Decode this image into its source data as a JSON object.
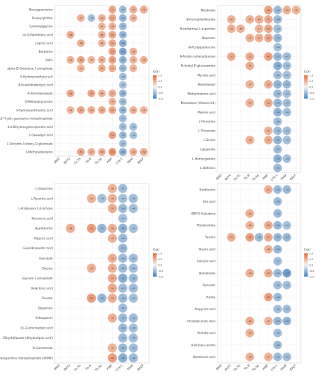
{
  "colors": {
    "negative": "#3f7fbd",
    "positive": "#e8672f",
    "neutral": "#f4f4f4",
    "frame": "#cccccc"
  },
  "chart_data": [
    {
      "type": "heatmap",
      "legend_title": "Corr",
      "legend_ticks": [
        "1.0",
        "0.5",
        "0.0",
        "-0.5",
        "-1.0"
      ],
      "legend_range": [
        -1,
        1
      ],
      "legend_placement": "right",
      "x_categories": [
        "BMD",
        "BVTV",
        "Tb.Th",
        "Tb.N",
        "Tb.Sp",
        "PINP",
        "CTX-1",
        "TRAP",
        "BALP"
      ],
      "y_categories": [
        "Deoxyguanosine",
        "Deoxycytidine",
        "Cysteinylglycine",
        "cis-9-Palmitoleic acid",
        "Caproic acid",
        "Berberine",
        "Apiin",
        "alpha-D-Galactose 1-phosphate",
        "5-Hydroxymethyluracil",
        "4-Guanidinobutyric acid",
        "4-Aminobenzoate",
        "3-Methoxytyramine",
        "3-Hydroxyanthranilic acid",
        "3',5'-Cyclic guanosine monophosphate",
        "3,4-Dihydroxyphenylacetic acid",
        "2-Oxoadipic acid",
        "2-Dehydro-3-deoxy-D-gluconate",
        "1-Methyladenosine"
      ],
      "cells": [
        [
          0,
          5,
          0.54
        ],
        [
          0,
          6,
          -0.49
        ],
        [
          0,
          7,
          0.5
        ],
        [
          0,
          8,
          0.51
        ],
        [
          1,
          2,
          0.47
        ],
        [
          1,
          3,
          -0.44
        ],
        [
          1,
          4,
          0.48
        ],
        [
          1,
          5,
          0.55
        ],
        [
          1,
          6,
          -0.54
        ],
        [
          1,
          7,
          0.46
        ],
        [
          2,
          4,
          0.45
        ],
        [
          2,
          5,
          0.49
        ],
        [
          2,
          6,
          -0.51
        ],
        [
          3,
          1,
          0.52
        ],
        [
          3,
          4,
          0.48
        ],
        [
          3,
          5,
          0.55
        ],
        [
          3,
          6,
          -0.54
        ],
        [
          4,
          2,
          0.48
        ],
        [
          4,
          4,
          0.46
        ],
        [
          4,
          5,
          0.53
        ],
        [
          4,
          6,
          -0.59
        ],
        [
          5,
          5,
          0.59
        ],
        [
          5,
          6,
          -0.66
        ],
        [
          5,
          7,
          0.49
        ],
        [
          6,
          1,
          0.46
        ],
        [
          6,
          2,
          0.56
        ],
        [
          6,
          3,
          0.44
        ],
        [
          6,
          4,
          0.48
        ],
        [
          6,
          5,
          0.59
        ],
        [
          6,
          6,
          -0.55
        ],
        [
          6,
          7,
          0.46
        ],
        [
          6,
          8,
          0.49
        ],
        [
          7,
          2,
          0.46
        ],
        [
          7,
          4,
          0.5
        ],
        [
          7,
          5,
          0.52
        ],
        [
          7,
          6,
          -0.51
        ],
        [
          7,
          7,
          0.45
        ],
        [
          8,
          6,
          -0.46
        ],
        [
          9,
          6,
          -0.43
        ],
        [
          10,
          1,
          0.55
        ],
        [
          10,
          3,
          0.56
        ],
        [
          10,
          4,
          0.46
        ],
        [
          10,
          5,
          0.51
        ],
        [
          10,
          6,
          -0.54
        ],
        [
          11,
          5,
          0.47
        ],
        [
          11,
          6,
          -0.47
        ],
        [
          12,
          1,
          0.44
        ],
        [
          12,
          2,
          0.57
        ],
        [
          12,
          3,
          0.51
        ],
        [
          12,
          4,
          0.53
        ],
        [
          12,
          5,
          0.54
        ],
        [
          12,
          6,
          -0.54
        ],
        [
          12,
          7,
          0.49
        ],
        [
          12,
          8,
          0.45
        ],
        [
          13,
          6,
          -0.47
        ],
        [
          14,
          6,
          -0.47
        ],
        [
          14,
          7,
          -0.46
        ],
        [
          15,
          5,
          0.58
        ],
        [
          15,
          6,
          -0.5
        ],
        [
          15,
          7,
          -0.44
        ],
        [
          16,
          6,
          -0.47
        ],
        [
          17,
          2,
          0.55
        ],
        [
          17,
          3,
          0.47
        ],
        [
          17,
          4,
          0.5
        ],
        [
          17,
          5,
          0.71
        ],
        [
          17,
          6,
          -0.58
        ],
        [
          17,
          7,
          0.49
        ],
        [
          17,
          8,
          0.52
        ]
      ]
    },
    {
      "type": "heatmap",
      "legend_title": "Corr",
      "legend_ticks": [
        "1.0",
        "0.5",
        "0.0",
        "-0.5",
        "-1.0"
      ],
      "legend_range": [
        -1,
        1
      ],
      "legend_placement": "right",
      "x_categories": [
        "BMD",
        "BVTV",
        "Tb.Th",
        "Tb.N",
        "Tb.Sp",
        "PINP",
        "CTX-1",
        "TRAP",
        "BALP"
      ],
      "y_categories": [
        "Nicotinate",
        "N-Formylmethionine",
        "N-carbamoyl-L-aspartate",
        "Naproxen",
        "N-Acetylputrescine",
        "N-Acetyl-L-phenylalanine",
        "N-Acetyl-D-glucosamine",
        "Myristic acid",
        "Montelukast",
        "Methylmalonic acid",
        "Menadione (Vitamin K3)",
        "Malonic acid",
        "L-Threonine",
        "L-Threonate",
        "L-Serine",
        "Lipoamide",
        "L-Homocysteine",
        "L-Histidine"
      ],
      "cells": [
        [
          0,
          5,
          0.58
        ],
        [
          0,
          6,
          -0.5
        ],
        [
          0,
          7,
          0.49
        ],
        [
          0,
          8,
          0.46
        ],
        [
          1,
          1,
          0.47
        ],
        [
          1,
          3,
          0.47
        ],
        [
          1,
          4,
          0.48
        ],
        [
          1,
          5,
          0.53
        ],
        [
          1,
          6,
          -0.49
        ],
        [
          2,
          1,
          0.49
        ],
        [
          2,
          2,
          0.48
        ],
        [
          2,
          4,
          0.47
        ],
        [
          2,
          5,
          0.55
        ],
        [
          2,
          6,
          -0.44
        ],
        [
          3,
          3,
          0.47
        ],
        [
          3,
          4,
          0.49
        ],
        [
          3,
          5,
          0.55
        ],
        [
          3,
          6,
          -0.51
        ],
        [
          4,
          6,
          -0.44
        ],
        [
          5,
          1,
          0.52
        ],
        [
          5,
          3,
          0.52
        ],
        [
          5,
          5,
          0.6
        ],
        [
          5,
          6,
          -0.51
        ],
        [
          5,
          7,
          -0.47
        ],
        [
          6,
          3,
          0.51
        ],
        [
          6,
          6,
          -0.59
        ],
        [
          6,
          7,
          -0.46
        ],
        [
          7,
          6,
          -0.46
        ],
        [
          7,
          7,
          -0.45
        ],
        [
          8,
          3,
          0.47
        ],
        [
          8,
          5,
          0.5
        ],
        [
          8,
          6,
          -0.52
        ],
        [
          8,
          7,
          -0.52
        ],
        [
          9,
          6,
          -0.49
        ],
        [
          9,
          7,
          -0.45
        ],
        [
          10,
          3,
          0.47
        ],
        [
          10,
          5,
          0.53
        ],
        [
          10,
          6,
          -0.52
        ],
        [
          10,
          7,
          -0.47
        ],
        [
          11,
          6,
          -0.56
        ],
        [
          11,
          7,
          -0.46
        ],
        [
          12,
          6,
          -0.46
        ],
        [
          13,
          5,
          0.47
        ],
        [
          13,
          6,
          -0.49
        ],
        [
          13,
          7,
          -0.47
        ],
        [
          14,
          3,
          0.49
        ],
        [
          14,
          5,
          0.51
        ],
        [
          14,
          6,
          -0.55
        ],
        [
          14,
          7,
          -0.45
        ],
        [
          15,
          6,
          -0.47
        ],
        [
          16,
          6,
          -0.57
        ],
        [
          16,
          7,
          -0.46
        ],
        [
          17,
          6,
          -0.5
        ]
      ]
    },
    {
      "type": "heatmap",
      "legend_title": "Corr",
      "legend_ticks": [
        "1.0",
        "0.5",
        "0.0",
        "-0.5",
        "-1.0"
      ],
      "legend_range": [
        -1,
        1
      ],
      "legend_placement": "right",
      "x_categories": [
        "BMD",
        "BVTV",
        "Tb.Th",
        "Tb.N",
        "Tb.Sp",
        "PINP",
        "CTX-1",
        "TRAP",
        "BALP"
      ],
      "y_categories": [
        "L-Glutamine",
        "L-Ascorbic acid",
        "L-Arabinono-1,4-lactone",
        "Kynurenic acid",
        "Hypotaurine",
        "Hippuric acid",
        "Guanidinoacetic acid",
        "Glycolate",
        "Glycine",
        "Glycerol 3-phosphate",
        "Galactonic acid",
        "Flavone",
        "Dopamine",
        "D-Neopterin",
        "DL-2-Aminoadipic acid",
        "Dihydrolipoate (dihydrolipoic acid)",
        "D-Galactarate",
        "Deoxyuridine monophosphate (dUMP)"
      ],
      "cells": [
        [
          0,
          5,
          0.46
        ],
        [
          0,
          6,
          -0.47
        ],
        [
          1,
          3,
          0.47
        ],
        [
          1,
          4,
          -0.44
        ],
        [
          1,
          5,
          0.48
        ],
        [
          1,
          6,
          -0.45
        ],
        [
          1,
          7,
          -0.46
        ],
        [
          2,
          5,
          0.5
        ],
        [
          2,
          6,
          -0.49
        ],
        [
          2,
          7,
          -0.44
        ],
        [
          3,
          6,
          -0.44
        ],
        [
          4,
          1,
          0.48
        ],
        [
          4,
          3,
          0.61
        ],
        [
          4,
          4,
          -0.51
        ],
        [
          4,
          5,
          0.48
        ],
        [
          4,
          6,
          -0.56
        ],
        [
          4,
          7,
          -0.44
        ],
        [
          5,
          5,
          0.47
        ],
        [
          5,
          6,
          -0.48
        ],
        [
          6,
          6,
          -0.52
        ],
        [
          7,
          5,
          0.5
        ],
        [
          7,
          6,
          -0.48
        ],
        [
          7,
          7,
          -0.47
        ],
        [
          8,
          3,
          0.48
        ],
        [
          8,
          5,
          0.49
        ],
        [
          8,
          6,
          -0.49
        ],
        [
          8,
          7,
          -0.46
        ],
        [
          9,
          5,
          0.52
        ],
        [
          9,
          6,
          -0.61
        ],
        [
          9,
          7,
          -0.49
        ],
        [
          10,
          5,
          0.54
        ],
        [
          10,
          6,
          -0.47
        ],
        [
          10,
          7,
          -0.47
        ],
        [
          11,
          3,
          0.62
        ],
        [
          11,
          4,
          -0.53
        ],
        [
          11,
          5,
          0.5
        ],
        [
          11,
          6,
          -0.5
        ],
        [
          11,
          7,
          -0.44
        ],
        [
          12,
          6,
          -0.47
        ],
        [
          13,
          5,
          0.49
        ],
        [
          13,
          6,
          -0.5
        ],
        [
          13,
          7,
          -0.47
        ],
        [
          14,
          6,
          -0.5
        ],
        [
          14,
          7,
          -0.45
        ],
        [
          15,
          6,
          -0.48
        ],
        [
          15,
          7,
          -0.46
        ],
        [
          16,
          5,
          0.45
        ],
        [
          16,
          6,
          -0.5
        ],
        [
          16,
          7,
          -0.47
        ],
        [
          17,
          5,
          0.6
        ],
        [
          17,
          6,
          -0.58
        ],
        [
          17,
          7,
          -0.48
        ]
      ]
    },
    {
      "type": "heatmap",
      "legend_title": "Corr",
      "legend_ticks": [
        "1.0",
        "0.5",
        "0.0",
        "-0.5",
        "-1.0"
      ],
      "legend_range": [
        -1,
        1
      ],
      "legend_placement": "right",
      "x_categories": [
        "BMD",
        "BVTV",
        "Tb.Th",
        "Tb.N",
        "Tb.Sp",
        "PINP",
        "CTX-1",
        "TRAP",
        "BALP"
      ],
      "y_categories": [
        "Xanthosine",
        "Uric acid",
        "UDP-D-Galactose",
        "Theobromine",
        "Taurine",
        "Stearic acid",
        "Salicylic acid",
        "Quinolinate",
        "Pyruvate",
        "Purine",
        "Propynoic acid",
        "Pentadecanoic Acid",
        "Palmitic acid",
        "O-Acetyl-L-serine",
        "Nicotinuric acid"
      ],
      "cells": [
        [
          0,
          5,
          0.51
        ],
        [
          0,
          6,
          -0.5
        ],
        [
          0,
          7,
          -0.5
        ],
        [
          1,
          6,
          -0.49
        ],
        [
          2,
          3,
          0.5
        ],
        [
          2,
          6,
          -0.5
        ],
        [
          3,
          3,
          0.46
        ],
        [
          3,
          5,
          0.53
        ],
        [
          3,
          6,
          -0.52
        ],
        [
          3,
          7,
          -0.44
        ],
        [
          4,
          1,
          0.52
        ],
        [
          4,
          3,
          0.61
        ],
        [
          4,
          4,
          -0.49
        ],
        [
          4,
          5,
          0.53
        ],
        [
          4,
          6,
          -0.52
        ],
        [
          4,
          7,
          -0.52
        ],
        [
          5,
          5,
          0.48
        ],
        [
          5,
          6,
          -0.52
        ],
        [
          6,
          6,
          -0.47
        ],
        [
          7,
          3,
          0.49
        ],
        [
          7,
          5,
          0.52
        ],
        [
          7,
          6,
          -0.5
        ],
        [
          7,
          7,
          -0.75
        ],
        [
          8,
          6,
          -0.46
        ],
        [
          8,
          7,
          -0.46
        ],
        [
          9,
          5,
          0.61
        ],
        [
          9,
          6,
          -0.49
        ],
        [
          10,
          6,
          -0.46
        ],
        [
          10,
          7,
          -0.47
        ],
        [
          11,
          3,
          0.52
        ],
        [
          11,
          5,
          0.47
        ],
        [
          11,
          6,
          -0.51
        ],
        [
          11,
          7,
          -0.54
        ],
        [
          12,
          3,
          0.49
        ],
        [
          12,
          6,
          -0.46
        ],
        [
          13,
          6,
          -0.49
        ],
        [
          14,
          3,
          0.48
        ],
        [
          14,
          5,
          0.47
        ],
        [
          14,
          6,
          -0.49
        ],
        [
          14,
          7,
          -0.47
        ]
      ]
    }
  ]
}
